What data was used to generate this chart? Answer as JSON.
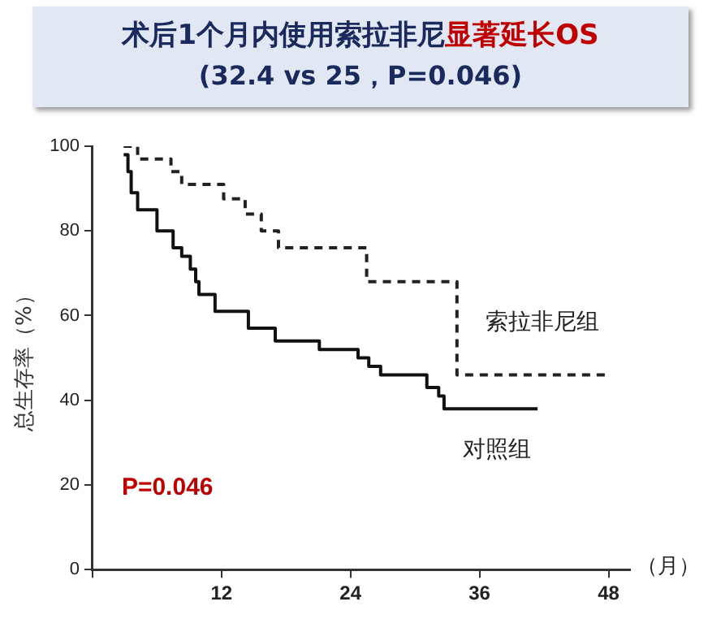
{
  "chart_data": {
    "type": "step",
    "title": "术后1个月内使用索拉非尼显著延长OS",
    "subtitle": "(32.4 vs 25，P=0.046)",
    "xlabel": "（月）",
    "ylabel": "总生存率（%）",
    "xlim": [
      0,
      50
    ],
    "xticks": [
      {
        "value": 0,
        "label": null
      },
      12,
      24,
      36,
      48
    ],
    "ylim": [
      0,
      100
    ],
    "yticks": [
      0,
      20,
      40,
      60,
      80,
      100
    ],
    "grid": false,
    "legend": false,
    "annotations": [
      "P=0.046"
    ],
    "series": [
      {
        "name": "索拉非尼组",
        "color": "#222222",
        "line_style": "dashed",
        "x": [
          2.9,
          4.2,
          7.3,
          8.3,
          12.2,
          14.2,
          15.7,
          17.3,
          25.5,
          33.9,
          48
        ],
        "values": [
          100,
          97,
          94,
          91,
          87.6,
          84,
          80,
          76,
          68,
          46,
          46
        ]
      },
      {
        "name": "对照组",
        "color": "#111111",
        "line_style": "solid",
        "x": [
          2.9,
          3.3,
          3.6,
          4.2,
          6,
          7.5,
          8.3,
          9.1,
          9.6,
          9.9,
          11.4,
          14.5,
          17,
          21.1,
          24.7,
          25.7,
          26.8,
          31.1,
          32.2,
          32.7,
          41.4
        ],
        "values": [
          98,
          94,
          89,
          85,
          80,
          76,
          74,
          71,
          68,
          65,
          61,
          57,
          54,
          52,
          50,
          48,
          46,
          43,
          41,
          38,
          38
        ]
      }
    ]
  }
}
